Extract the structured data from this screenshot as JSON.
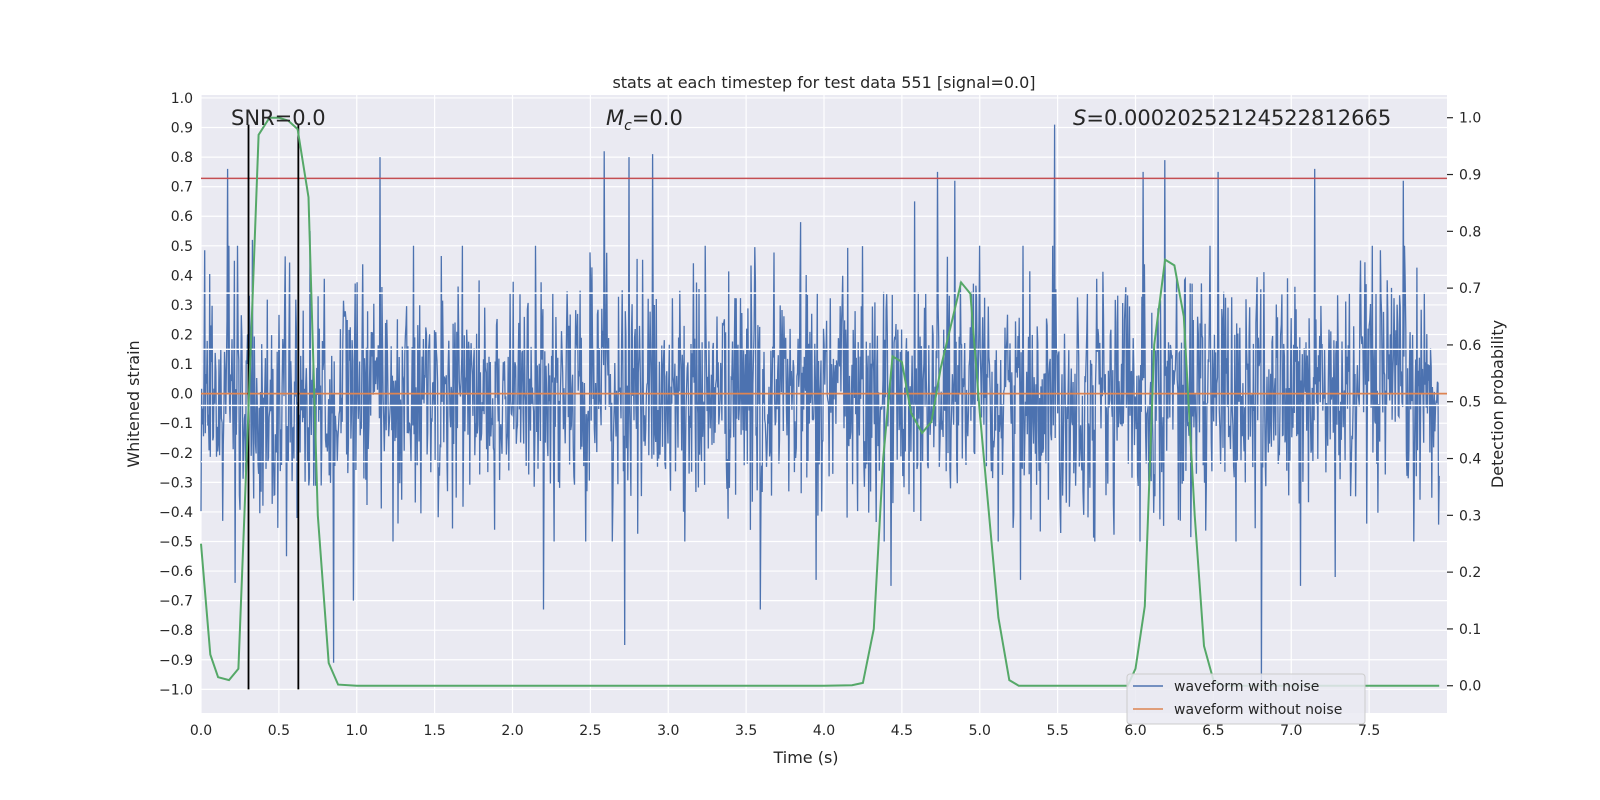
{
  "chart_data": {
    "type": "line",
    "title": "stats at each timestep for test data 551 [signal=0.0]",
    "xlabel": "Time (s)",
    "ylabel": "Whitened strain",
    "y2label": "Detection probability",
    "xlim": [
      0.0,
      8.0
    ],
    "ylim": [
      -1.08,
      1.01
    ],
    "y2lim": [
      -0.048,
      1.04
    ],
    "x_ticks": [
      0.0,
      0.5,
      1.0,
      1.5,
      2.0,
      2.5,
      3.0,
      3.5,
      4.0,
      4.5,
      5.0,
      5.5,
      6.0,
      6.5,
      7.0,
      7.5
    ],
    "x_tick_labels": [
      "0.0",
      "0.5",
      "1.0",
      "1.5",
      "2.0",
      "2.5",
      "3.0",
      "3.5",
      "4.0",
      "4.5",
      "5.0",
      "5.5",
      "6.0",
      "6.5",
      "7.0",
      "7.5"
    ],
    "y_ticks": [
      1.0,
      0.9,
      0.8,
      0.7,
      0.6,
      0.5,
      0.4,
      0.3,
      0.2,
      0.1,
      0.0,
      -0.1,
      -0.2,
      -0.3,
      -0.4,
      -0.5,
      -0.6,
      -0.7,
      -0.8,
      -0.9,
      -1.0
    ],
    "y_tick_labels": [
      "1.0",
      "0.9",
      "0.8",
      "0.7",
      "0.6",
      "0.5",
      "0.4",
      "0.3",
      "0.2",
      "0.1",
      "0.0",
      "−0.1",
      "−0.2",
      "−0.3",
      "−0.4",
      "−0.5",
      "−0.6",
      "−0.7",
      "−0.8",
      "−0.9",
      "−1.0"
    ],
    "y2_ticks": [
      1.0,
      0.9,
      0.8,
      0.7,
      0.6,
      0.5,
      0.4,
      0.3,
      0.2,
      0.1,
      0.0
    ],
    "y2_tick_labels": [
      "1.0",
      "0.9",
      "0.8",
      "0.7",
      "0.6",
      "0.5",
      "0.4",
      "0.3",
      "0.2",
      "0.1",
      "0.0"
    ],
    "annotations": {
      "snr": "SNR=0.0",
      "mc_symbol": "M",
      "mc_sub": "c",
      "mc_value": "=0.0",
      "s_symbol": "S",
      "s_value": "=0.00020252124522812665"
    },
    "legend": {
      "placement": "bottom-right",
      "entries": [
        {
          "label": "waveform with noise",
          "color": "#4c72b0"
        },
        {
          "label": "waveform without noise",
          "color": "#dd8452"
        }
      ]
    },
    "colors": {
      "noise": "#4c72b0",
      "clean": "#dd8452",
      "probability": "#55a868",
      "threshold": "#c44e52",
      "markers": "#000000",
      "plot_bg": "#eaeaf2",
      "grid": "#ffffff"
    },
    "noise_envelope": {
      "typical_amplitude": 0.4,
      "upper_spikes": [
        [
          0.17,
          0.76
        ],
        [
          0.33,
          0.52
        ],
        [
          0.55,
          0.58
        ],
        [
          0.7,
          0.55
        ],
        [
          1.15,
          0.8
        ],
        [
          2.59,
          0.82
        ],
        [
          2.75,
          0.8
        ],
        [
          2.9,
          0.81
        ],
        [
          3.85,
          0.58
        ],
        [
          4.58,
          0.65
        ],
        [
          4.73,
          0.75
        ],
        [
          4.84,
          0.72
        ],
        [
          5.48,
          0.91
        ],
        [
          6.05,
          0.75
        ],
        [
          6.19,
          0.79
        ],
        [
          6.53,
          0.75
        ],
        [
          7.15,
          0.76
        ],
        [
          7.72,
          0.72
        ]
      ],
      "lower_spikes": [
        [
          0.22,
          -0.64
        ],
        [
          0.55,
          -0.55
        ],
        [
          0.85,
          -0.91
        ],
        [
          0.98,
          -0.7
        ],
        [
          2.2,
          -0.73
        ],
        [
          2.72,
          -0.85
        ],
        [
          3.59,
          -0.73
        ],
        [
          3.95,
          -0.63
        ],
        [
          4.43,
          -0.65
        ],
        [
          5.26,
          -0.63
        ],
        [
          6.81,
          -0.98
        ],
        [
          7.06,
          -0.65
        ],
        [
          7.28,
          -0.62
        ]
      ]
    },
    "threshold_y": 0.728,
    "vertical_markers": {
      "x": [
        0.305,
        0.625
      ],
      "y_range": [
        -1.0,
        0.91
      ]
    },
    "series": [
      {
        "name": "waveform with noise",
        "role": "noise"
      },
      {
        "name": "waveform without noise",
        "x": [
          0.0,
          8.0
        ],
        "values": [
          0.0,
          0.0
        ]
      },
      {
        "role": "probability",
        "axis": "right",
        "x": [
          0.0,
          0.06,
          0.11,
          0.18,
          0.24,
          0.3,
          0.37,
          0.44,
          0.5,
          0.56,
          0.62,
          0.69,
          0.75,
          0.82,
          0.88,
          1.0,
          2.0,
          3.0,
          4.0,
          4.18,
          4.25,
          4.32,
          4.38,
          4.44,
          4.5,
          4.56,
          4.63,
          4.69,
          4.75,
          4.82,
          4.88,
          4.94,
          5.0,
          5.06,
          5.12,
          5.19,
          5.25,
          5.31,
          5.5,
          5.8,
          5.95,
          6.0,
          6.06,
          6.12,
          6.19,
          6.25,
          6.31,
          6.38,
          6.44,
          6.5,
          6.56,
          7.0,
          7.5,
          7.95
        ],
        "values": [
          0.25,
          0.055,
          0.015,
          0.01,
          0.03,
          0.45,
          0.97,
          1.0,
          1.0,
          0.995,
          0.98,
          0.86,
          0.3,
          0.04,
          0.002,
          0.0,
          0.0,
          0.0,
          0.0,
          0.001,
          0.005,
          0.1,
          0.4,
          0.58,
          0.57,
          0.48,
          0.445,
          0.465,
          0.56,
          0.64,
          0.71,
          0.69,
          0.48,
          0.3,
          0.12,
          0.01,
          0.0,
          0.0,
          0.0,
          0.0,
          0.0,
          0.03,
          0.14,
          0.6,
          0.75,
          0.74,
          0.65,
          0.3,
          0.07,
          0.01,
          0.0,
          0.0,
          0.0,
          0.0
        ]
      }
    ]
  }
}
